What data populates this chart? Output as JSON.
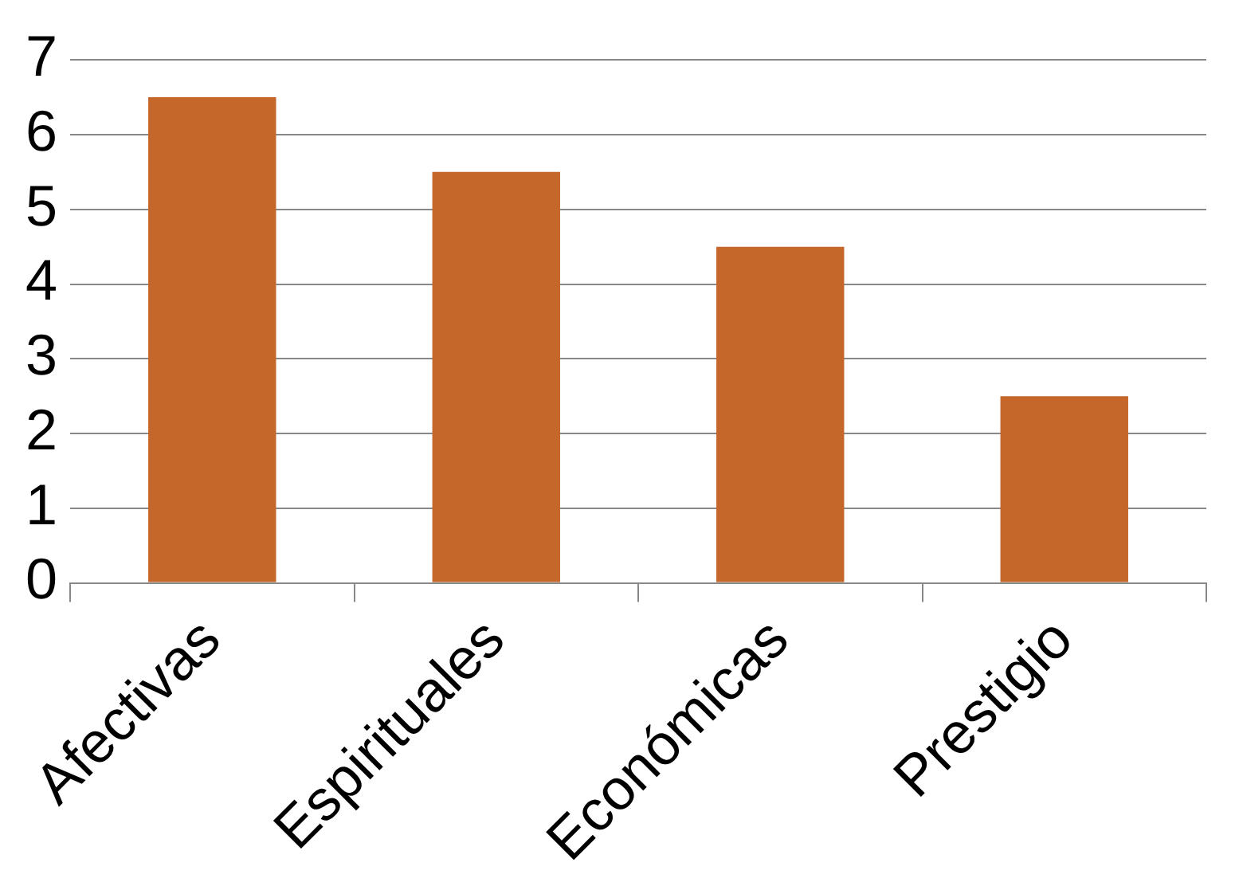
{
  "chart_data": {
    "type": "bar",
    "categories": [
      "Afectivas",
      "Espirituales",
      "Económicas",
      "Prestigio"
    ],
    "values": [
      6.5,
      5.5,
      4.5,
      2.5
    ],
    "color": "#c5662a",
    "ylim": [
      0,
      7
    ],
    "yticks": [
      0,
      1,
      2,
      3,
      4,
      5,
      6,
      7
    ],
    "grid": "y",
    "legend": false
  }
}
